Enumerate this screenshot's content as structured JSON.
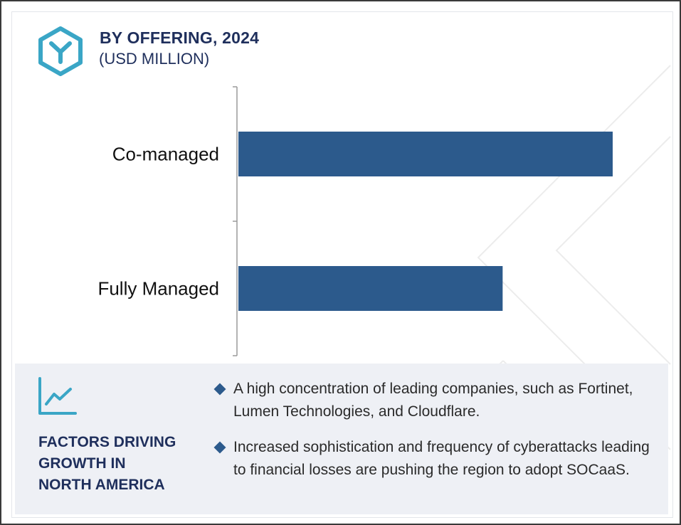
{
  "header": {
    "title": "BY OFFERING, 2024",
    "subtitle": "(USD MILLION)"
  },
  "colors": {
    "bar": "#2c5a8c",
    "heading": "#1f2f5c",
    "accent": "#3aa6c6",
    "panel_bg": "#eef0f5"
  },
  "icons": {
    "logo": "hexagon-y-icon",
    "growth": "line-chart-growth-icon",
    "bullet": "diamond-icon"
  },
  "chart_data": {
    "type": "bar",
    "orientation": "horizontal",
    "title": "BY OFFERING, 2024",
    "subtitle": "(USD MILLION)",
    "categories": [
      "Co-managed",
      "Fully Managed"
    ],
    "values": [
      100,
      70.6
    ],
    "xlim": [
      0,
      100
    ],
    "grid": false,
    "legend": "none"
  },
  "factors": {
    "heading": "FACTORS DRIVING GROWTH IN NORTH AMERICA",
    "heading_lines": [
      "FACTORS DRIVING",
      "GROWTH IN",
      "NORTH AMERICA"
    ],
    "bullets": [
      "A high concentration of leading companies, such as Fortinet, Lumen Technologies, and Cloudflare.",
      "Increased sophistication and frequency of cyberattacks leading to financial losses are pushing the region to adopt SOCaaS."
    ]
  }
}
